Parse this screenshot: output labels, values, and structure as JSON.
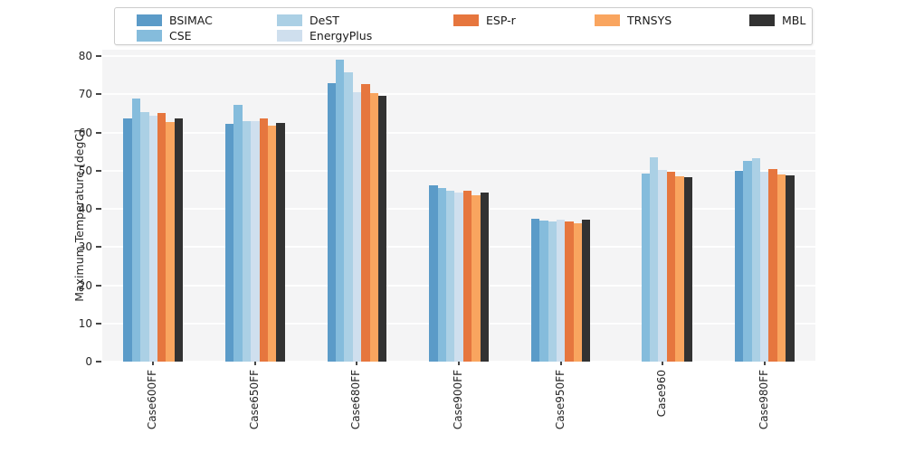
{
  "chart_data": {
    "type": "bar",
    "title": "",
    "xlabel": "",
    "ylabel": "Maximum Temperature [degC]",
    "ylim": [
      0,
      81.7
    ],
    "yticks": [
      0,
      10,
      20,
      30,
      40,
      50,
      60,
      70,
      80
    ],
    "grid": "horizontal-white-on-lightgray",
    "legend_position": "top",
    "categories": [
      "Case600FF",
      "Case650FF",
      "Case680FF",
      "Case900FF",
      "Case950FF",
      "Case960",
      "Case980FF"
    ],
    "series": [
      {
        "name": "BSIMAC",
        "color": "#5b9bc8",
        "values": [
          63.6,
          62.2,
          72.9,
          46.3,
          37.5,
          null,
          49.9
        ]
      },
      {
        "name": "CSE",
        "color": "#85bcdc",
        "values": [
          68.9,
          67.2,
          79.0,
          45.5,
          36.9,
          49.2,
          52.5
        ]
      },
      {
        "name": "DeST",
        "color": "#abd0e5",
        "values": [
          65.3,
          62.9,
          75.7,
          44.8,
          36.7,
          53.5,
          53.3
        ]
      },
      {
        "name": "EnergyPlus",
        "color": "#cfdfee",
        "values": [
          64.3,
          63.1,
          70.5,
          44.4,
          37.2,
          50.2,
          49.8
        ]
      },
      {
        "name": "ESP-r",
        "color": "#e6763e",
        "values": [
          65.2,
          63.6,
          72.7,
          44.8,
          36.7,
          49.8,
          50.4
        ]
      },
      {
        "name": "TRNSYS",
        "color": "#f9a55f",
        "values": [
          62.8,
          61.7,
          70.3,
          43.6,
          36.2,
          48.5,
          49.0
        ]
      },
      {
        "name": "MBL",
        "color": "#323232",
        "values": [
          63.7,
          62.6,
          69.6,
          44.4,
          37.3,
          48.2,
          48.8
        ]
      }
    ],
    "legend_columns": [
      [
        "BSIMAC",
        "CSE"
      ],
      [
        "DeST",
        "EnergyPlus"
      ],
      [
        "ESP-r"
      ],
      [
        "TRNSYS"
      ],
      [
        "MBL"
      ]
    ]
  },
  "layout_colors": {
    "plot_background": "#f4f4f5",
    "figure_background": "#ffffff",
    "gridline": "#ffffff",
    "tick_text": "#262626"
  }
}
